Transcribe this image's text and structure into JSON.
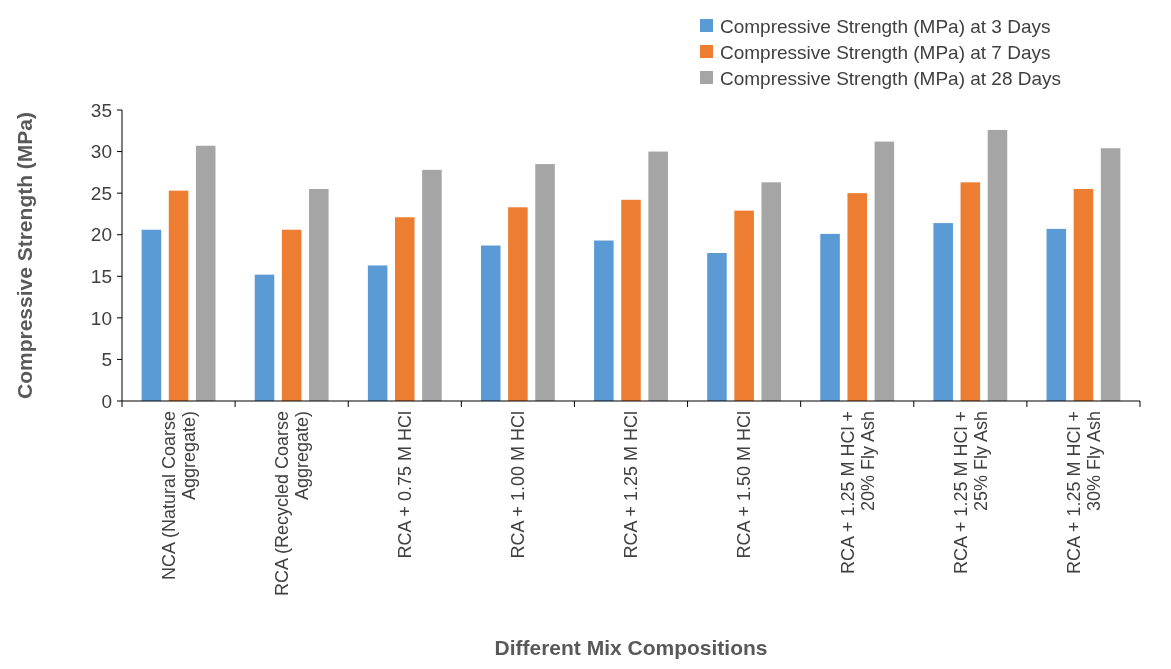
{
  "chart_data": {
    "type": "bar",
    "xlabel": "Different Mix Compositions",
    "ylabel": "Compressive Strength (MPa)",
    "categories": [
      "NCA (Natural Coarse Aggregate)",
      "RCA (Recycled Coarse Aggregate)",
      "RCA + 0.75 M HCl",
      "RCA + 1.00 M HCl",
      "RCA + 1.25 M HCl",
      "RCA + 1.50 M HCl",
      "RCA + 1.25 M HCl + 20% Fly Ash",
      "RCA + 1.25 M HCl + 25% Fly Ash",
      "RCA + 1.25 M HCl + 30% Fly Ash"
    ],
    "series": [
      {
        "name": "Compressive Strength (MPa) at 3 Days",
        "color": "#5b9bd5",
        "values": [
          20.6,
          15.2,
          16.3,
          18.7,
          19.3,
          17.8,
          20.1,
          21.4,
          20.7
        ]
      },
      {
        "name": "Compressive Strength (MPa) at 7 Days",
        "color": "#ed7d31",
        "values": [
          25.3,
          20.6,
          22.1,
          23.3,
          24.2,
          22.9,
          25.0,
          26.3,
          25.5
        ]
      },
      {
        "name": "Compressive Strength (MPa) at 28 Days",
        "color": "#a5a5a5",
        "values": [
          30.7,
          25.5,
          27.8,
          28.5,
          30.0,
          26.3,
          31.2,
          32.6,
          30.4
        ]
      }
    ],
    "ylim": [
      0,
      35
    ],
    "yticks": [
      0,
      5,
      10,
      15,
      20,
      25,
      30,
      35
    ],
    "grid": false,
    "legend": "top right"
  }
}
